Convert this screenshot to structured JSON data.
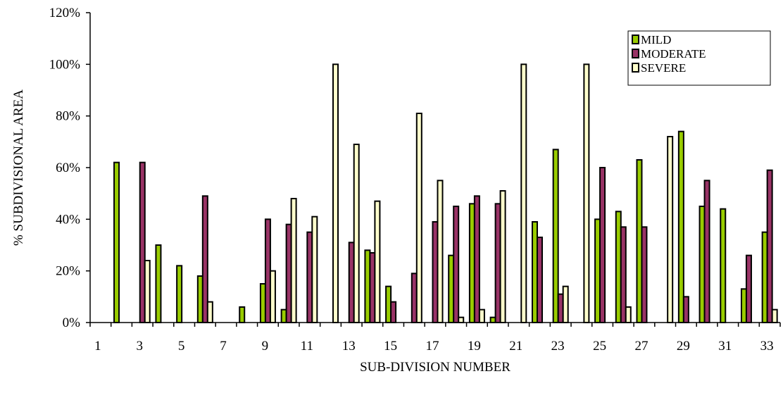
{
  "chart_data": {
    "type": "bar",
    "title": "",
    "xlabel": "SUB-DIVISION NUMBER",
    "ylabel": "% SUBDIVISIONAL AREA",
    "ylim": [
      0,
      1.2
    ],
    "yticks": [
      0,
      0.2,
      0.4,
      0.6,
      0.8,
      1.0,
      1.2
    ],
    "ytick_labels": [
      "0%",
      "20%",
      "40%",
      "60%",
      "80%",
      "100%",
      "120%"
    ],
    "xtick_labels": [
      "1",
      "3",
      "5",
      "7",
      "9",
      "11",
      "13",
      "15",
      "17",
      "19",
      "21",
      "23",
      "25",
      "27",
      "29",
      "31",
      "33"
    ],
    "categories": [
      1,
      2,
      3,
      4,
      5,
      6,
      7,
      8,
      9,
      10,
      11,
      12,
      13,
      14,
      15,
      16,
      17,
      18,
      19,
      20,
      21,
      22,
      23,
      24,
      25,
      26,
      27,
      28,
      29,
      30,
      31,
      32,
      33
    ],
    "grid": false,
    "legend_position": "top-right",
    "series": [
      {
        "name": "MILD",
        "color": "#99CC00",
        "values": [
          0,
          0.62,
          0,
          0.3,
          0.22,
          0.18,
          0,
          0.06,
          0.15,
          0.05,
          0,
          0,
          0,
          0.28,
          0.14,
          0,
          0,
          0.26,
          0.46,
          0.02,
          0,
          0.39,
          0.67,
          0,
          0.4,
          0.43,
          0.63,
          0,
          0.74,
          0.45,
          0.44,
          0.13,
          0.35
        ]
      },
      {
        "name": "MODERATE",
        "color": "#993366",
        "values": [
          0,
          0,
          0.62,
          0,
          0,
          0.49,
          0,
          0,
          0.4,
          0.38,
          0.35,
          0,
          0.31,
          0.27,
          0.08,
          0.19,
          0.39,
          0.45,
          0.49,
          0.46,
          0,
          0.33,
          0.11,
          0,
          0.6,
          0.37,
          0.37,
          0,
          0.1,
          0.55,
          0,
          0.26,
          0.59
        ]
      },
      {
        "name": "SEVERE",
        "color": "#FFFFCC",
        "values": [
          0,
          0,
          0.24,
          0,
          0,
          0.08,
          0,
          0,
          0.2,
          0.48,
          0.41,
          1.0,
          0.69,
          0.47,
          0,
          0.81,
          0.55,
          0.02,
          0.05,
          0.51,
          1.0,
          0,
          0.14,
          1.0,
          0,
          0.06,
          0,
          0.72,
          0,
          0,
          0,
          0,
          0.05
        ]
      }
    ]
  }
}
